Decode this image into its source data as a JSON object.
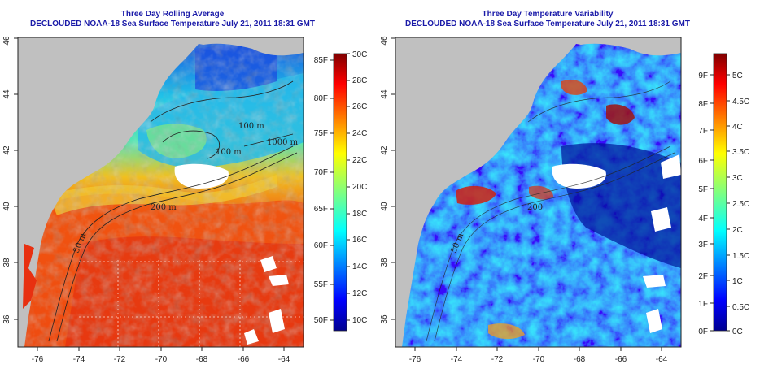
{
  "panels": [
    {
      "title_line1": "Three Day Rolling Average",
      "title_line2": "DECLOUDED NOAA-18 Sea Surface Temperature July 21, 2011 18:31 GMT",
      "x_ticks": [
        "-76",
        "-74",
        "-72",
        "-70",
        "-68",
        "-66",
        "-64"
      ],
      "y_ticks": [
        "36",
        "38",
        "40",
        "42",
        "44",
        "46"
      ],
      "colorbar_left_labels": [
        "50F",
        "55F",
        "60F",
        "65F",
        "70F",
        "75F",
        "80F",
        "85F"
      ],
      "colorbar_right_labels": [
        "10C",
        "12C",
        "14C",
        "16C",
        "18C",
        "20C",
        "22C",
        "24C",
        "26C",
        "28C",
        "30C"
      ],
      "contour_labels": [
        "100 m",
        "100 m",
        "1000 m",
        "200 m",
        "50 m"
      ]
    },
    {
      "title_line1": "Three Day Temperature Variability",
      "title_line2": "DECLOUDED NOAA-18 Sea Surface Temperature July 21, 2011 18:31 GMT",
      "x_ticks": [
        "-76",
        "-74",
        "-72",
        "-70",
        "-68",
        "-66",
        "-64"
      ],
      "y_ticks": [
        "36",
        "38",
        "40",
        "42",
        "44",
        "46"
      ],
      "colorbar_left_labels": [
        "0F",
        "1F",
        "2F",
        "3F",
        "4F",
        "5F",
        "6F",
        "7F",
        "8F",
        "9F"
      ],
      "colorbar_right_labels": [
        "0C",
        "0.5C",
        "1C",
        "1.5C",
        "2C",
        "2.5C",
        "3C",
        "3.5C",
        "4C",
        "4.5C",
        "5C"
      ],
      "contour_labels": [
        "200",
        "50 m"
      ]
    }
  ],
  "colors": {
    "land": "#c0c0c0",
    "title": "#1a1aa8",
    "jet_low": "#00008f",
    "jet_high": "#800000"
  }
}
